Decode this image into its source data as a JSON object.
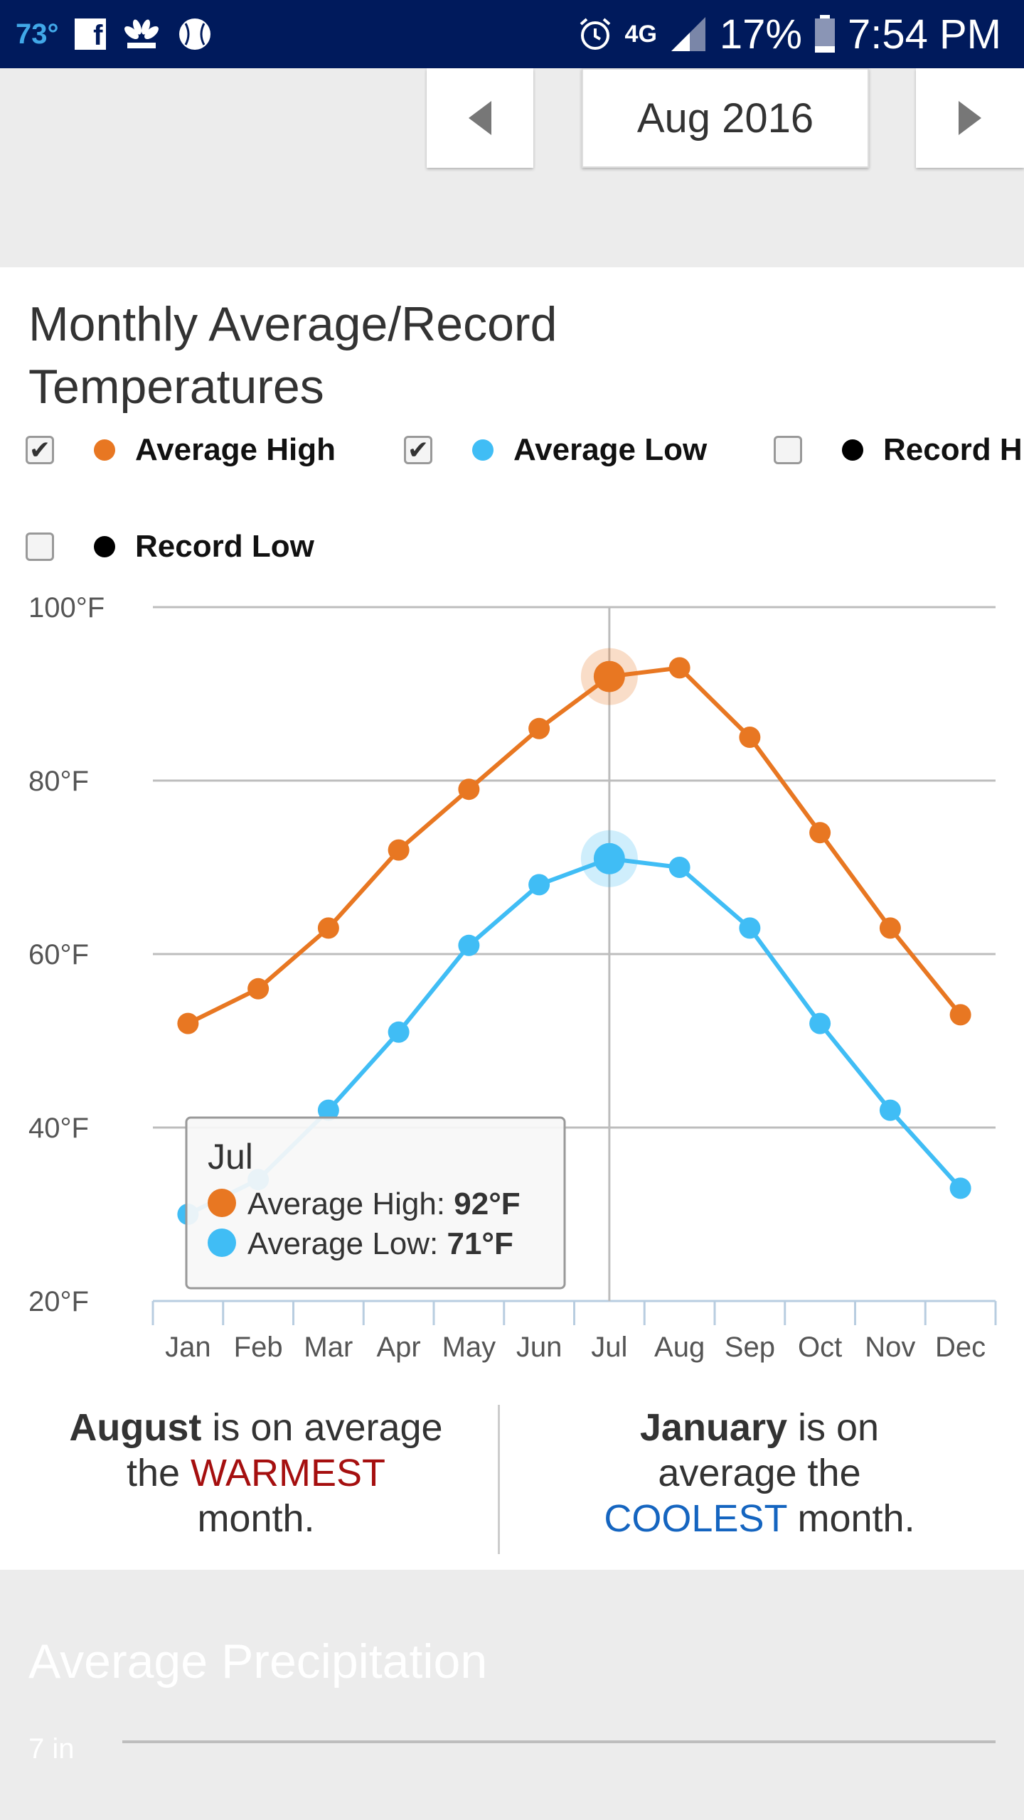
{
  "status_bar": {
    "temperature": "73°",
    "network": "4G",
    "battery": "17%",
    "time": "7:54 PM"
  },
  "nav": {
    "month_label": "Aug 2016"
  },
  "card": {
    "title_line1": "Monthly Average/Record",
    "title_line2": "Temperatures",
    "legend": [
      {
        "label": "Average High",
        "checked": true,
        "color": "#e87722"
      },
      {
        "label": "Average Low",
        "checked": true,
        "color": "#40bdf5"
      },
      {
        "label": "Record High",
        "checked": false,
        "color": "#000000"
      },
      {
        "label": "Record Low",
        "checked": false,
        "color": "#000000"
      }
    ],
    "check_mark": "✔"
  },
  "chart_data": {
    "type": "line",
    "categories": [
      "Jan",
      "Feb",
      "Mar",
      "Apr",
      "May",
      "Jun",
      "Jul",
      "Aug",
      "Sep",
      "Oct",
      "Nov",
      "Dec"
    ],
    "series": [
      {
        "name": "Average High",
        "values": [
          52,
          56,
          63,
          72,
          79,
          86,
          92,
          93,
          85,
          74,
          63,
          53
        ],
        "color": "#e87722"
      },
      {
        "name": "Average Low",
        "values": [
          30,
          34,
          42,
          51,
          61,
          68,
          71,
          70,
          63,
          52,
          42,
          33
        ],
        "color": "#40bdf5"
      }
    ],
    "ylim": [
      20,
      100
    ],
    "yticks": [
      "20°F",
      "40°F",
      "60°F",
      "80°F",
      "100°F"
    ],
    "grid": true,
    "highlight_index": 6,
    "tooltip": {
      "month": "Jul",
      "high_label": "Average High: ",
      "high_value": "92°F",
      "low_label": "Average Low: ",
      "low_value": "71°F"
    }
  },
  "summary": {
    "warm_month": "August",
    "warm_text1": " is on average",
    "warm_text2": "the ",
    "warm_word": "WARMEST",
    "warm_text3": "month.",
    "cool_month": "January",
    "cool_text1": " is on",
    "cool_text2": "average the",
    "cool_word": "COOLEST",
    "cool_text3": " month.",
    "warm_color": "#a50f0f",
    "cool_color": "#1565c0"
  },
  "precip": {
    "title": "Average Precipitation",
    "first_tick": "7 in"
  }
}
